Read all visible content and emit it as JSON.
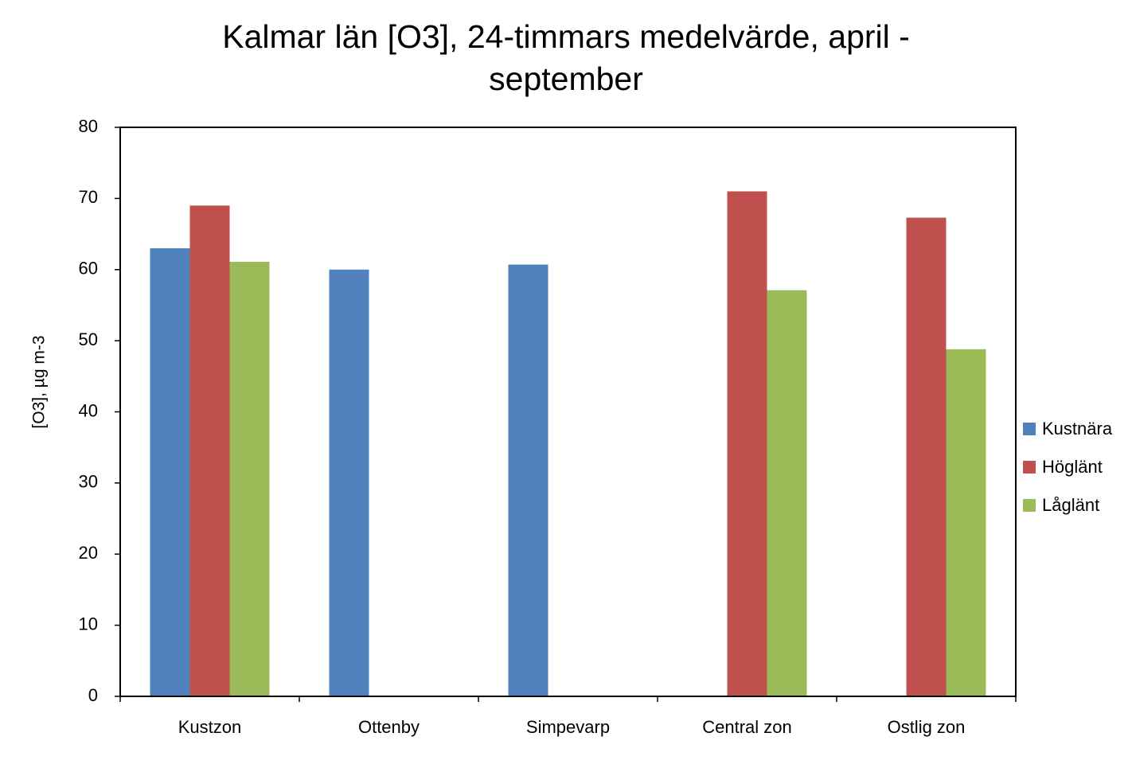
{
  "chart_data": {
    "type": "bar",
    "title_lines": [
      "Kalmar län [O3], 24-timmars medelvärde, april -",
      "september"
    ],
    "ylabel": "[O3], µg m-3",
    "xlabel": "",
    "ylim": [
      0,
      80
    ],
    "yticks": [
      0,
      10,
      20,
      30,
      40,
      50,
      60,
      70,
      80
    ],
    "categories": [
      "Kustzon",
      "Ottenby",
      "Simpevarp",
      "Central zon",
      "Ostlig zon"
    ],
    "series": [
      {
        "name": "Kustnära",
        "color": "#4F81BD",
        "values": [
          63,
          60,
          60.7,
          null,
          null
        ]
      },
      {
        "name": "Höglänt",
        "color": "#C0504D",
        "values": [
          69,
          null,
          null,
          71,
          67.3
        ]
      },
      {
        "name": "Låglänt",
        "color": "#9BBB59",
        "values": [
          61.1,
          null,
          null,
          57.1,
          48.8
        ]
      }
    ],
    "grid": false,
    "legend_position": "right"
  }
}
